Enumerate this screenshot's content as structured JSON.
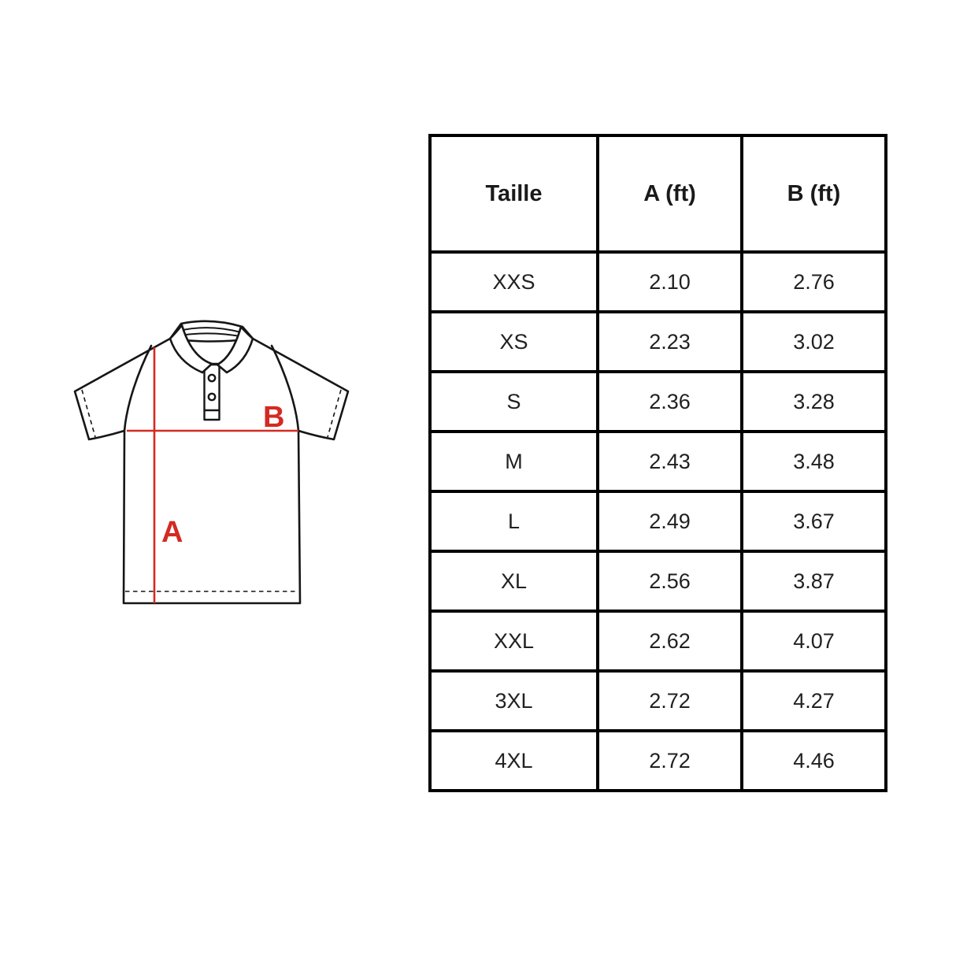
{
  "colors": {
    "background": "#ffffff",
    "outline": "#161616",
    "measure_red": "#d42a22",
    "table_border": "#000000",
    "text": "#212121"
  },
  "diagram": {
    "name": "polo-shirt-measurement-diagram",
    "label_a": "A",
    "label_b": "B"
  },
  "table": {
    "headers": [
      "Taille",
      "A (ft)",
      "B (ft)"
    ],
    "rows": [
      [
        "XXS",
        "2.10",
        "2.76"
      ],
      [
        "XS",
        "2.23",
        "3.02"
      ],
      [
        "S",
        "2.36",
        "3.28"
      ],
      [
        "M",
        "2.43",
        "3.48"
      ],
      [
        "L",
        "2.49",
        "3.67"
      ],
      [
        "XL",
        "2.56",
        "3.87"
      ],
      [
        "XXL",
        "2.62",
        "4.07"
      ],
      [
        "3XL",
        "2.72",
        "4.27"
      ],
      [
        "4XL",
        "2.72",
        "4.46"
      ]
    ]
  },
  "chart_data": {
    "type": "table",
    "title": "",
    "columns": [
      "Taille",
      "A (ft)",
      "B (ft)"
    ],
    "rows": [
      {
        "taille": "XXS",
        "a_ft": 2.1,
        "b_ft": 2.76
      },
      {
        "taille": "XS",
        "a_ft": 2.23,
        "b_ft": 3.02
      },
      {
        "taille": "S",
        "a_ft": 2.36,
        "b_ft": 3.28
      },
      {
        "taille": "M",
        "a_ft": 2.43,
        "b_ft": 3.48
      },
      {
        "taille": "L",
        "a_ft": 2.49,
        "b_ft": 3.67
      },
      {
        "taille": "XL",
        "a_ft": 2.56,
        "b_ft": 3.87
      },
      {
        "taille": "XXL",
        "a_ft": 2.62,
        "b_ft": 4.07
      },
      {
        "taille": "3XL",
        "a_ft": 2.72,
        "b_ft": 4.27
      },
      {
        "taille": "4XL",
        "a_ft": 2.72,
        "b_ft": 4.46
      }
    ]
  }
}
